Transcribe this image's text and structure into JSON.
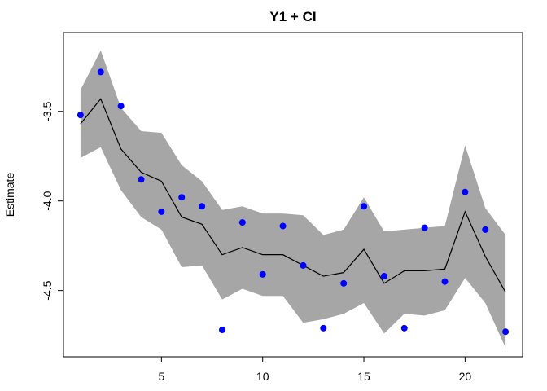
{
  "chart_data": {
    "type": "line",
    "title": "Y1 + CI",
    "xlabel": "",
    "ylabel": "Estimate",
    "xlim": [
      0.16,
      22.84
    ],
    "ylim": [
      -4.87,
      -3.06
    ],
    "x_ticks": [
      5,
      10,
      15,
      20
    ],
    "x_tick_labels": [
      "5",
      "10",
      "15",
      "20"
    ],
    "y_ticks": [
      -3.5,
      -4.0,
      -4.5
    ],
    "y_tick_labels": [
      "-3.5",
      "-4.0",
      "-4.5"
    ],
    "grid": false,
    "legend": "none",
    "x": [
      1,
      2,
      3,
      4,
      5,
      6,
      7,
      8,
      9,
      10,
      11,
      12,
      13,
      14,
      15,
      16,
      17,
      18,
      19,
      20,
      21,
      22
    ],
    "series": [
      {
        "kind": "ci-band",
        "color": "#a6a6a6",
        "upper": [
          -3.38,
          -3.16,
          -3.48,
          -3.61,
          -3.62,
          -3.8,
          -3.89,
          -4.05,
          -4.03,
          -4.07,
          -4.07,
          -4.08,
          -4.19,
          -4.16,
          -3.98,
          -4.17,
          -4.16,
          -4.15,
          -4.14,
          -3.69,
          -4.04,
          -4.19
        ],
        "lower": [
          -3.76,
          -3.7,
          -3.94,
          -4.09,
          -4.16,
          -4.37,
          -4.36,
          -4.55,
          -4.49,
          -4.53,
          -4.53,
          -4.68,
          -4.66,
          -4.63,
          -4.57,
          -4.74,
          -4.63,
          -4.64,
          -4.61,
          -4.43,
          -4.57,
          -4.82
        ]
      },
      {
        "kind": "line",
        "color": "#000000",
        "values": [
          -3.57,
          -3.43,
          -3.71,
          -3.84,
          -3.89,
          -4.09,
          -4.13,
          -4.3,
          -4.26,
          -4.3,
          -4.3,
          -4.36,
          -4.42,
          -4.4,
          -4.27,
          -4.46,
          -4.39,
          -4.39,
          -4.38,
          -4.06,
          -4.31,
          -4.51
        ]
      },
      {
        "kind": "points",
        "color": "#0000ff",
        "values": [
          -3.52,
          -3.28,
          -3.47,
          -3.88,
          -4.06,
          -3.98,
          -4.03,
          -4.72,
          -4.12,
          -4.41,
          -4.14,
          -4.36,
          -4.71,
          -4.46,
          -4.03,
          -4.42,
          -4.71,
          -4.15,
          -4.45,
          -3.95,
          -4.16,
          -4.73
        ]
      }
    ]
  }
}
